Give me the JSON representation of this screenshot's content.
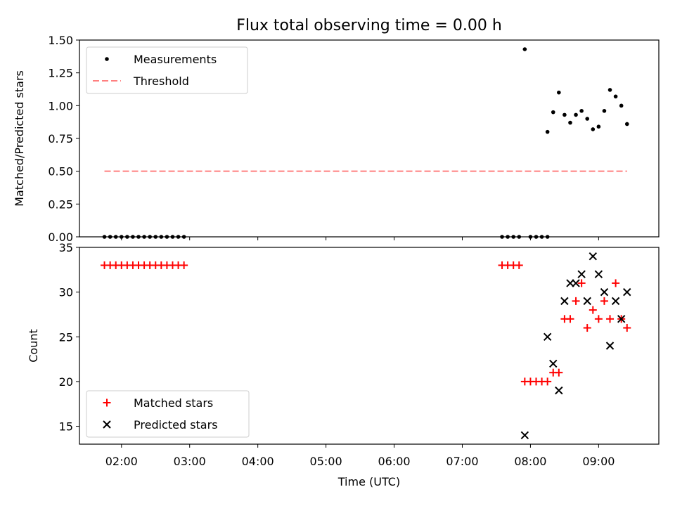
{
  "chart_data": {
    "type": "scatter",
    "title": "Flux total observing time = 0.00 h",
    "xlabel": "Time (UTC)",
    "xlim": [
      "01:23",
      "09:53"
    ],
    "xticks": [
      "02:00",
      "03:00",
      "04:00",
      "05:00",
      "06:00",
      "07:00",
      "08:00",
      "09:00"
    ],
    "panels": [
      {
        "id": "ratio",
        "ylabel": "Matched/Predicted stars",
        "ylim": [
          0,
          1.5
        ],
        "yticks": [
          "0.00",
          "0.25",
          "0.50",
          "0.75",
          "1.00",
          "1.25",
          "1.50"
        ],
        "legend_position": "upper-left",
        "series": [
          {
            "name": "Measurements",
            "marker": "dot",
            "color": "#000000",
            "points": [
              [
                "01:45",
                0
              ],
              [
                "01:50",
                0
              ],
              [
                "01:55",
                0
              ],
              [
                "02:00",
                0
              ],
              [
                "02:05",
                0
              ],
              [
                "02:10",
                0
              ],
              [
                "02:15",
                0
              ],
              [
                "02:20",
                0
              ],
              [
                "02:25",
                0
              ],
              [
                "02:30",
                0
              ],
              [
                "02:35",
                0
              ],
              [
                "02:40",
                0
              ],
              [
                "02:45",
                0
              ],
              [
                "02:50",
                0
              ],
              [
                "02:55",
                0
              ],
              [
                "07:35",
                0
              ],
              [
                "07:40",
                0
              ],
              [
                "07:45",
                0
              ],
              [
                "07:50",
                0
              ],
              [
                "08:00",
                0
              ],
              [
                "08:05",
                0
              ],
              [
                "08:10",
                0
              ],
              [
                "08:15",
                0
              ],
              [
                "07:55",
                1.43
              ],
              [
                "08:15",
                0.8
              ],
              [
                "08:20",
                0.95
              ],
              [
                "08:25",
                1.1
              ],
              [
                "08:30",
                0.93
              ],
              [
                "08:35",
                0.87
              ],
              [
                "08:40",
                0.93
              ],
              [
                "08:45",
                0.96
              ],
              [
                "08:50",
                0.9
              ],
              [
                "08:55",
                0.82
              ],
              [
                "09:00",
                0.84
              ],
              [
                "09:05",
                0.96
              ],
              [
                "09:10",
                1.12
              ],
              [
                "09:15",
                1.07
              ],
              [
                "09:20",
                1.0
              ],
              [
                "09:25",
                0.86
              ]
            ]
          },
          {
            "name": "Threshold",
            "style": "dashed",
            "color": "#ff8080",
            "from": "01:45",
            "to": "09:25",
            "value": 0.5
          }
        ]
      },
      {
        "id": "count",
        "ylabel": "Count",
        "ylim": [
          13,
          35
        ],
        "yticks": [
          "15",
          "20",
          "25",
          "30",
          "35"
        ],
        "legend_position": "lower-left",
        "series": [
          {
            "name": "Matched stars",
            "marker": "plus",
            "color": "#ff0000",
            "points": [
              [
                "01:45",
                33
              ],
              [
                "01:50",
                33
              ],
              [
                "01:55",
                33
              ],
              [
                "02:00",
                33
              ],
              [
                "02:05",
                33
              ],
              [
                "02:10",
                33
              ],
              [
                "02:15",
                33
              ],
              [
                "02:20",
                33
              ],
              [
                "02:25",
                33
              ],
              [
                "02:30",
                33
              ],
              [
                "02:35",
                33
              ],
              [
                "02:40",
                33
              ],
              [
                "02:45",
                33
              ],
              [
                "02:50",
                33
              ],
              [
                "02:55",
                33
              ],
              [
                "07:35",
                33
              ],
              [
                "07:40",
                33
              ],
              [
                "07:45",
                33
              ],
              [
                "07:50",
                33
              ],
              [
                "07:55",
                20
              ],
              [
                "08:00",
                20
              ],
              [
                "08:05",
                20
              ],
              [
                "08:10",
                20
              ],
              [
                "08:15",
                20
              ],
              [
                "08:20",
                21
              ],
              [
                "08:25",
                21
              ],
              [
                "08:30",
                27
              ],
              [
                "08:35",
                27
              ],
              [
                "08:40",
                29
              ],
              [
                "08:45",
                31
              ],
              [
                "08:50",
                26
              ],
              [
                "08:55",
                28
              ],
              [
                "09:00",
                27
              ],
              [
                "09:05",
                29
              ],
              [
                "09:10",
                27
              ],
              [
                "09:15",
                31
              ],
              [
                "09:20",
                27
              ],
              [
                "09:25",
                26
              ]
            ]
          },
          {
            "name": "Predicted stars",
            "marker": "x",
            "color": "#000000",
            "points": [
              [
                "07:55",
                14
              ],
              [
                "08:15",
                25
              ],
              [
                "08:20",
                22
              ],
              [
                "08:25",
                19
              ],
              [
                "08:30",
                29
              ],
              [
                "08:35",
                31
              ],
              [
                "08:40",
                31
              ],
              [
                "08:45",
                32
              ],
              [
                "08:50",
                29
              ],
              [
                "08:55",
                34
              ],
              [
                "09:00",
                32
              ],
              [
                "09:05",
                30
              ],
              [
                "09:10",
                24
              ],
              [
                "09:15",
                29
              ],
              [
                "09:20",
                27
              ],
              [
                "09:25",
                30
              ]
            ]
          }
        ]
      }
    ]
  }
}
